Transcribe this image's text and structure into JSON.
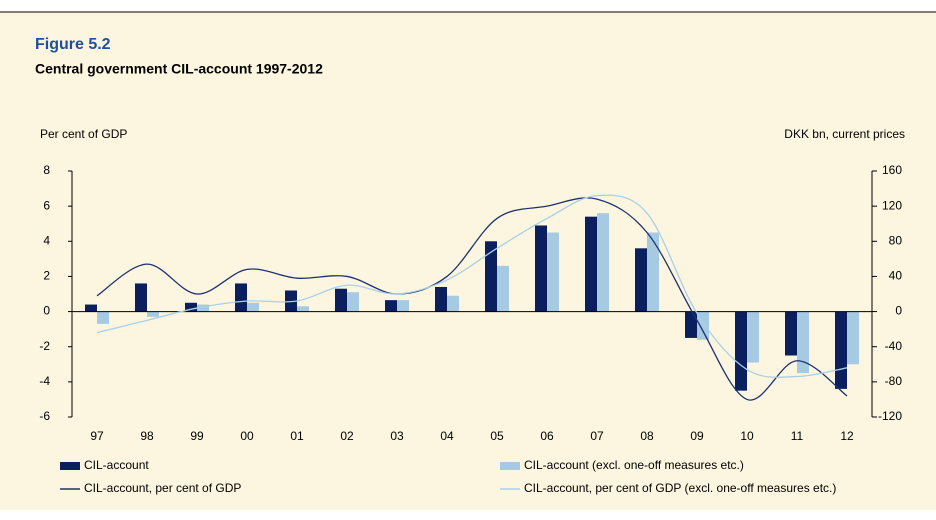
{
  "chart_data": {
    "type": "bar",
    "title": "Figure 5.2",
    "subtitle": "Central government CIL-account 1997-2012",
    "y_label": "Per cent of GDP",
    "y2_label": "DKK bn, current prices",
    "categories": [
      "97",
      "98",
      "99",
      "00",
      "01",
      "02",
      "03",
      "04",
      "05",
      "06",
      "07",
      "08",
      "09",
      "10",
      "11",
      "12"
    ],
    "series": [
      {
        "name": "CIL-account",
        "type": "bar",
        "axis": "y2",
        "color": "#0b1f5e",
        "values": [
          8,
          32,
          10,
          32,
          24,
          26,
          13,
          28,
          80,
          98,
          108,
          72,
          -30,
          -90,
          -50,
          -88
        ]
      },
      {
        "name": "CIL-account (excl. one-off measures etc.)",
        "type": "bar",
        "axis": "y2",
        "color": "#a7cae3",
        "values": [
          -14,
          -6,
          8,
          10,
          6,
          22,
          13,
          18,
          52,
          90,
          112,
          90,
          -32,
          -58,
          -70,
          -60
        ]
      },
      {
        "name": "CIL-account, per cent of GDP",
        "type": "line",
        "axis": "y",
        "color": "#1c3170",
        "values": [
          0.9,
          2.7,
          1.0,
          2.4,
          1.9,
          2.0,
          1.0,
          2.0,
          5.3,
          6.0,
          6.4,
          4.5,
          -0.5,
          -5.0,
          -2.8,
          -4.8
        ]
      },
      {
        "name": "CIL-account, per cent of GDP (excl. one-off measures etc.)",
        "type": "line",
        "axis": "y",
        "color": "#a9d0e8",
        "values": [
          -1.2,
          -0.5,
          0.2,
          0.6,
          0.6,
          1.5,
          1.0,
          1.8,
          3.6,
          5.3,
          6.6,
          5.6,
          -0.1,
          -3.3,
          -3.7,
          -3.2
        ]
      }
    ],
    "ylim": [
      -6,
      8
    ],
    "yticks": [
      -6,
      -4,
      -2,
      0,
      2,
      4,
      6,
      8
    ],
    "y2lim": [
      -120,
      160
    ],
    "y2ticks": [
      -120,
      -80,
      -40,
      0,
      40,
      80,
      120,
      160
    ]
  }
}
